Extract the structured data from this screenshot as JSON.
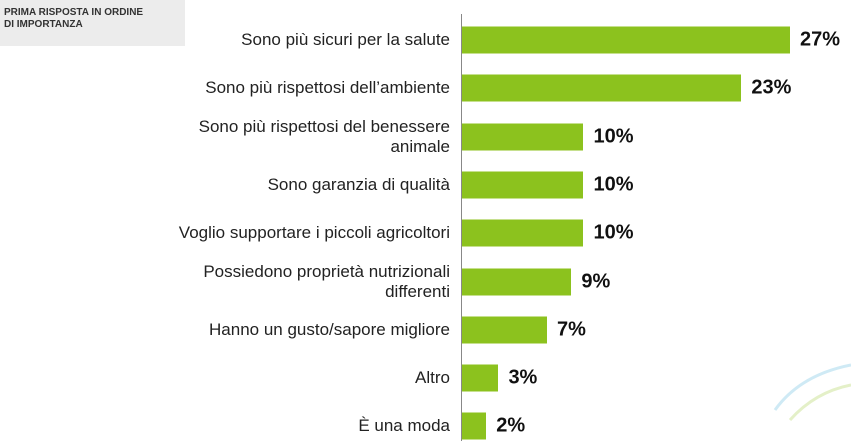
{
  "chart_data": {
    "type": "bar",
    "orientation": "horizontal",
    "annotation": "PRIMA RISPOSTA IN ORDINE\nDI IMPORTANZA",
    "categories": [
      "Sono più sicuri per la salute",
      "Sono più rispettosi dell’ambiente",
      "Sono più rispettosi del benessere\nanimale",
      "Sono garanzia di qualità",
      "Voglio supportare i piccoli agricoltori",
      "Possiedono proprietà nutrizionali\ndifferenti",
      "Hanno un gusto/sapore migliore",
      "Altro",
      "È una moda"
    ],
    "values": [
      27,
      23,
      10,
      10,
      10,
      9,
      7,
      3,
      2
    ],
    "value_labels": [
      "27%",
      "23%",
      "10%",
      "10%",
      "10%",
      "9%",
      "7%",
      "3%",
      "2%"
    ],
    "color": "#8cc21e"
  }
}
